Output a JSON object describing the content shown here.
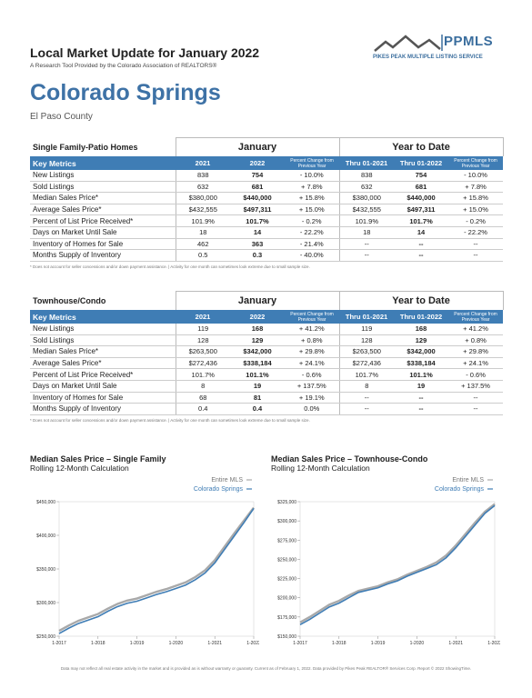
{
  "header": {
    "title": "Local Market Update for January 2022",
    "subtitle": "A Research Tool Provided by the Colorado Association of REALTORS®",
    "logo": "PPMLS",
    "logo_subtitle": "PIKES PEAK MULTIPLE LISTING SERVICE",
    "city": "Colorado Springs",
    "county": "El Paso County"
  },
  "tables": [
    {
      "title": "Single Family-Patio Homes",
      "groups": [
        "January",
        "Year to Date"
      ],
      "columns": [
        "Key Metrics",
        "2021",
        "2022",
        "Percent Change from Previous Year",
        "Thru 01-2021",
        "Thru 01-2022",
        "Percent Change from Previous Year"
      ],
      "rows": [
        [
          "New Listings",
          "838",
          "754",
          "- 10.0%",
          "838",
          "754",
          "- 10.0%"
        ],
        [
          "Sold Listings",
          "632",
          "681",
          "+ 7.8%",
          "632",
          "681",
          "+ 7.8%"
        ],
        [
          "Median Sales Price*",
          "$380,000",
          "$440,000",
          "+ 15.8%",
          "$380,000",
          "$440,000",
          "+ 15.8%"
        ],
        [
          "Average Sales Price*",
          "$432,555",
          "$497,311",
          "+ 15.0%",
          "$432,555",
          "$497,311",
          "+ 15.0%"
        ],
        [
          "Percent of List Price Received*",
          "101.9%",
          "101.7%",
          "- 0.2%",
          "101.9%",
          "101.7%",
          "- 0.2%"
        ],
        [
          "Days on Market Until Sale",
          "18",
          "14",
          "- 22.2%",
          "18",
          "14",
          "- 22.2%"
        ],
        [
          "Inventory of Homes for Sale",
          "462",
          "363",
          "- 21.4%",
          "--",
          "--",
          "--"
        ],
        [
          "Months Supply of Inventory",
          "0.5",
          "0.3",
          "- 40.0%",
          "--",
          "--",
          "--"
        ]
      ],
      "footnote": "* Does not account for seller concessions and/or down payment assistance. | Activity for one month can sometimes look extreme due to small sample size."
    },
    {
      "title": "Townhouse/Condo",
      "groups": [
        "January",
        "Year to Date"
      ],
      "columns": [
        "Key Metrics",
        "2021",
        "2022",
        "Percent Change from Previous Year",
        "Thru 01-2021",
        "Thru 01-2022",
        "Percent Change from Previous Year"
      ],
      "rows": [
        [
          "New Listings",
          "119",
          "168",
          "+ 41.2%",
          "119",
          "168",
          "+ 41.2%"
        ],
        [
          "Sold Listings",
          "128",
          "129",
          "+ 0.8%",
          "128",
          "129",
          "+ 0.8%"
        ],
        [
          "Median Sales Price*",
          "$263,500",
          "$342,000",
          "+ 29.8%",
          "$263,500",
          "$342,000",
          "+ 29.8%"
        ],
        [
          "Average Sales Price*",
          "$272,436",
          "$338,184",
          "+ 24.1%",
          "$272,436",
          "$338,184",
          "+ 24.1%"
        ],
        [
          "Percent of List Price Received*",
          "101.7%",
          "101.1%",
          "- 0.6%",
          "101.7%",
          "101.1%",
          "- 0.6%"
        ],
        [
          "Days on Market Until Sale",
          "8",
          "19",
          "+ 137.5%",
          "8",
          "19",
          "+ 137.5%"
        ],
        [
          "Inventory of Homes for Sale",
          "68",
          "81",
          "+ 19.1%",
          "--",
          "--",
          "--"
        ],
        [
          "Months Supply of Inventory",
          "0.4",
          "0.4",
          "0.0%",
          "--",
          "--",
          "--"
        ]
      ],
      "footnote": "* Does not account for seller concessions and/or down payment assistance. | Activity for one month can sometimes look extreme due to small sample size."
    }
  ],
  "chart_data": [
    {
      "type": "line",
      "title": "Median Sales Price – Single Family",
      "subtitle": "Rolling 12-Month Calculation",
      "categories": [
        "1-2017",
        null,
        null,
        null,
        "1-2018",
        null,
        null,
        null,
        "1-2019",
        null,
        null,
        null,
        "1-2020",
        null,
        null,
        null,
        "1-2021",
        null,
        null,
        null,
        "1-2022"
      ],
      "series": [
        {
          "name": "Entire MLS",
          "color": "#a9a9a9",
          "values": [
            258000,
            266000,
            273000,
            278000,
            283000,
            291000,
            298000,
            303000,
            306000,
            311000,
            316000,
            320000,
            325000,
            330000,
            338000,
            348000,
            363000,
            383000,
            403000,
            422000,
            441000
          ]
        },
        {
          "name": "Colorado Springs",
          "color": "#3f7db5",
          "values": [
            254000,
            262000,
            269000,
            274000,
            279000,
            287000,
            294000,
            299000,
            302000,
            307000,
            312000,
            316000,
            321000,
            326000,
            334000,
            344000,
            359000,
            379000,
            399000,
            419000,
            440000
          ]
        }
      ],
      "ylim": [
        250000,
        450000
      ],
      "yticks": [
        {
          "value": 250000,
          "label": "$250,000"
        },
        {
          "value": 300000,
          "label": "$300,000"
        },
        {
          "value": 350000,
          "label": "$350,000"
        },
        {
          "value": 400000,
          "label": "$400,000"
        },
        {
          "value": 450000,
          "label": "$450,000"
        }
      ]
    },
    {
      "type": "line",
      "title": "Median Sales Price – Townhouse-Condo",
      "subtitle": "Rolling 12-Month Calculation",
      "categories": [
        "1-2017",
        null,
        null,
        null,
        "1-2018",
        null,
        null,
        null,
        "1-2019",
        null,
        null,
        null,
        "1-2020",
        null,
        null,
        null,
        "1-2021",
        null,
        null,
        null,
        "1-2022"
      ],
      "series": [
        {
          "name": "Entire MLS",
          "color": "#a9a9a9",
          "values": [
            168000,
            175000,
            183000,
            191000,
            196000,
            203000,
            209000,
            212000,
            215000,
            220000,
            224000,
            230000,
            235000,
            240000,
            246000,
            255000,
            268000,
            283000,
            298000,
            312000,
            322000
          ]
        },
        {
          "name": "Colorado Springs",
          "color": "#3f7db5",
          "values": [
            165000,
            172000,
            180000,
            188000,
            193000,
            200000,
            207000,
            210000,
            213000,
            218000,
            222000,
            228000,
            233000,
            238000,
            243000,
            252000,
            265000,
            280000,
            295000,
            310000,
            320000
          ]
        }
      ],
      "ylim": [
        150000,
        325000
      ],
      "yticks": [
        {
          "value": 150000,
          "label": "$150,000"
        },
        {
          "value": 175000,
          "label": "$175,000"
        },
        {
          "value": 200000,
          "label": "$200,000"
        },
        {
          "value": 225000,
          "label": "$225,000"
        },
        {
          "value": 250000,
          "label": "$250,000"
        },
        {
          "value": 275000,
          "label": "$275,000"
        },
        {
          "value": 300000,
          "label": "$300,000"
        },
        {
          "value": 325000,
          "label": "$325,000"
        }
      ]
    }
  ],
  "footer": "Data may not reflect all real estate activity in the market and is provided as is without warranty or guaranty. Current as of February 1, 2022. Data provided by Pikes Peak REALTOR® Services Corp. Report © 2022 ShowingTime."
}
